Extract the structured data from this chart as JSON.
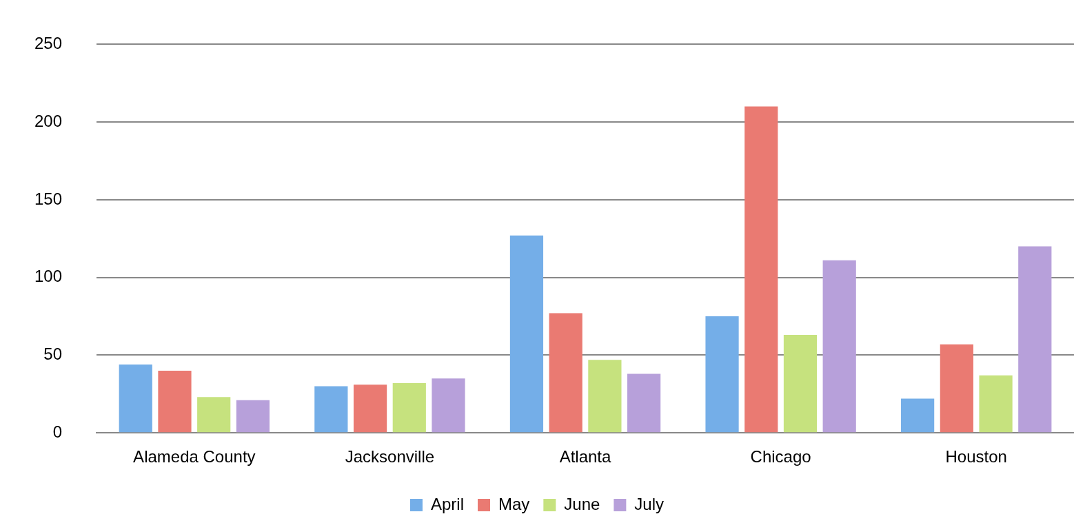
{
  "chart_data": {
    "type": "bar",
    "categories": [
      "Alameda County",
      "Jacksonville",
      "Atlanta",
      "Chicago",
      "Houston"
    ],
    "series": [
      {
        "name": "April",
        "color": "#74aee8",
        "values": [
          44,
          30,
          127,
          75,
          22
        ]
      },
      {
        "name": "May",
        "color": "#ea7a72",
        "values": [
          40,
          31,
          77,
          210,
          57
        ]
      },
      {
        "name": "June",
        "color": "#c6e27e",
        "values": [
          23,
          32,
          47,
          63,
          37
        ]
      },
      {
        "name": "July",
        "color": "#b7a0da",
        "values": [
          21,
          35,
          38,
          111,
          120
        ]
      }
    ],
    "ylim": [
      0,
      250
    ],
    "yticks": [
      0,
      50,
      100,
      150,
      200,
      250
    ],
    "grid": "y",
    "legend": "bottom"
  }
}
